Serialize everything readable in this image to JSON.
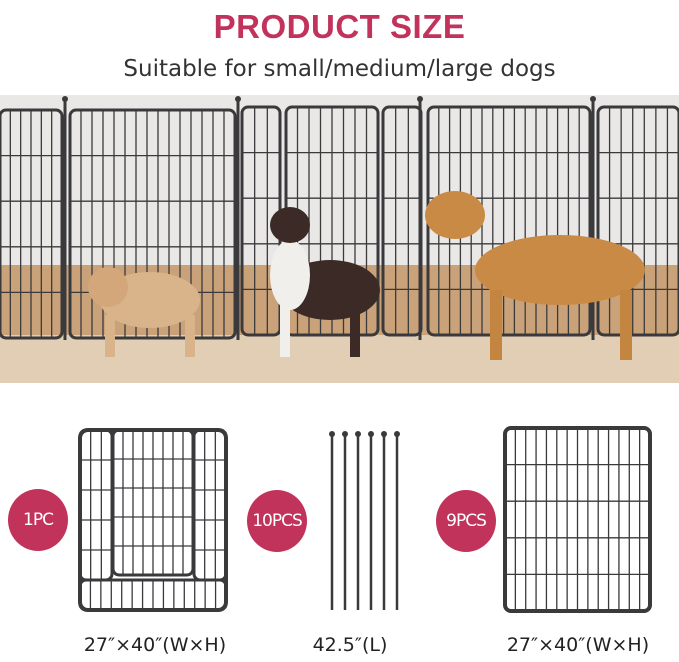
{
  "header": {
    "title": "PRODUCT SIZE",
    "subtitle": "Suitable for small/medium/large dogs"
  },
  "colors": {
    "accent": "#c2335c",
    "fence": "#3a3a3c",
    "floor": "#c9a27a",
    "wall": "#e9e8e6"
  },
  "parts": [
    {
      "badge": "1PC",
      "dimension": "27″×40″(W×H)",
      "item": "door-panel"
    },
    {
      "badge": "10PCS",
      "dimension": "42.5″(L)",
      "item": "ground-stakes"
    },
    {
      "badge": "9PCS",
      "dimension": "27″×40″(W×H)",
      "item": "fence-panel"
    }
  ]
}
